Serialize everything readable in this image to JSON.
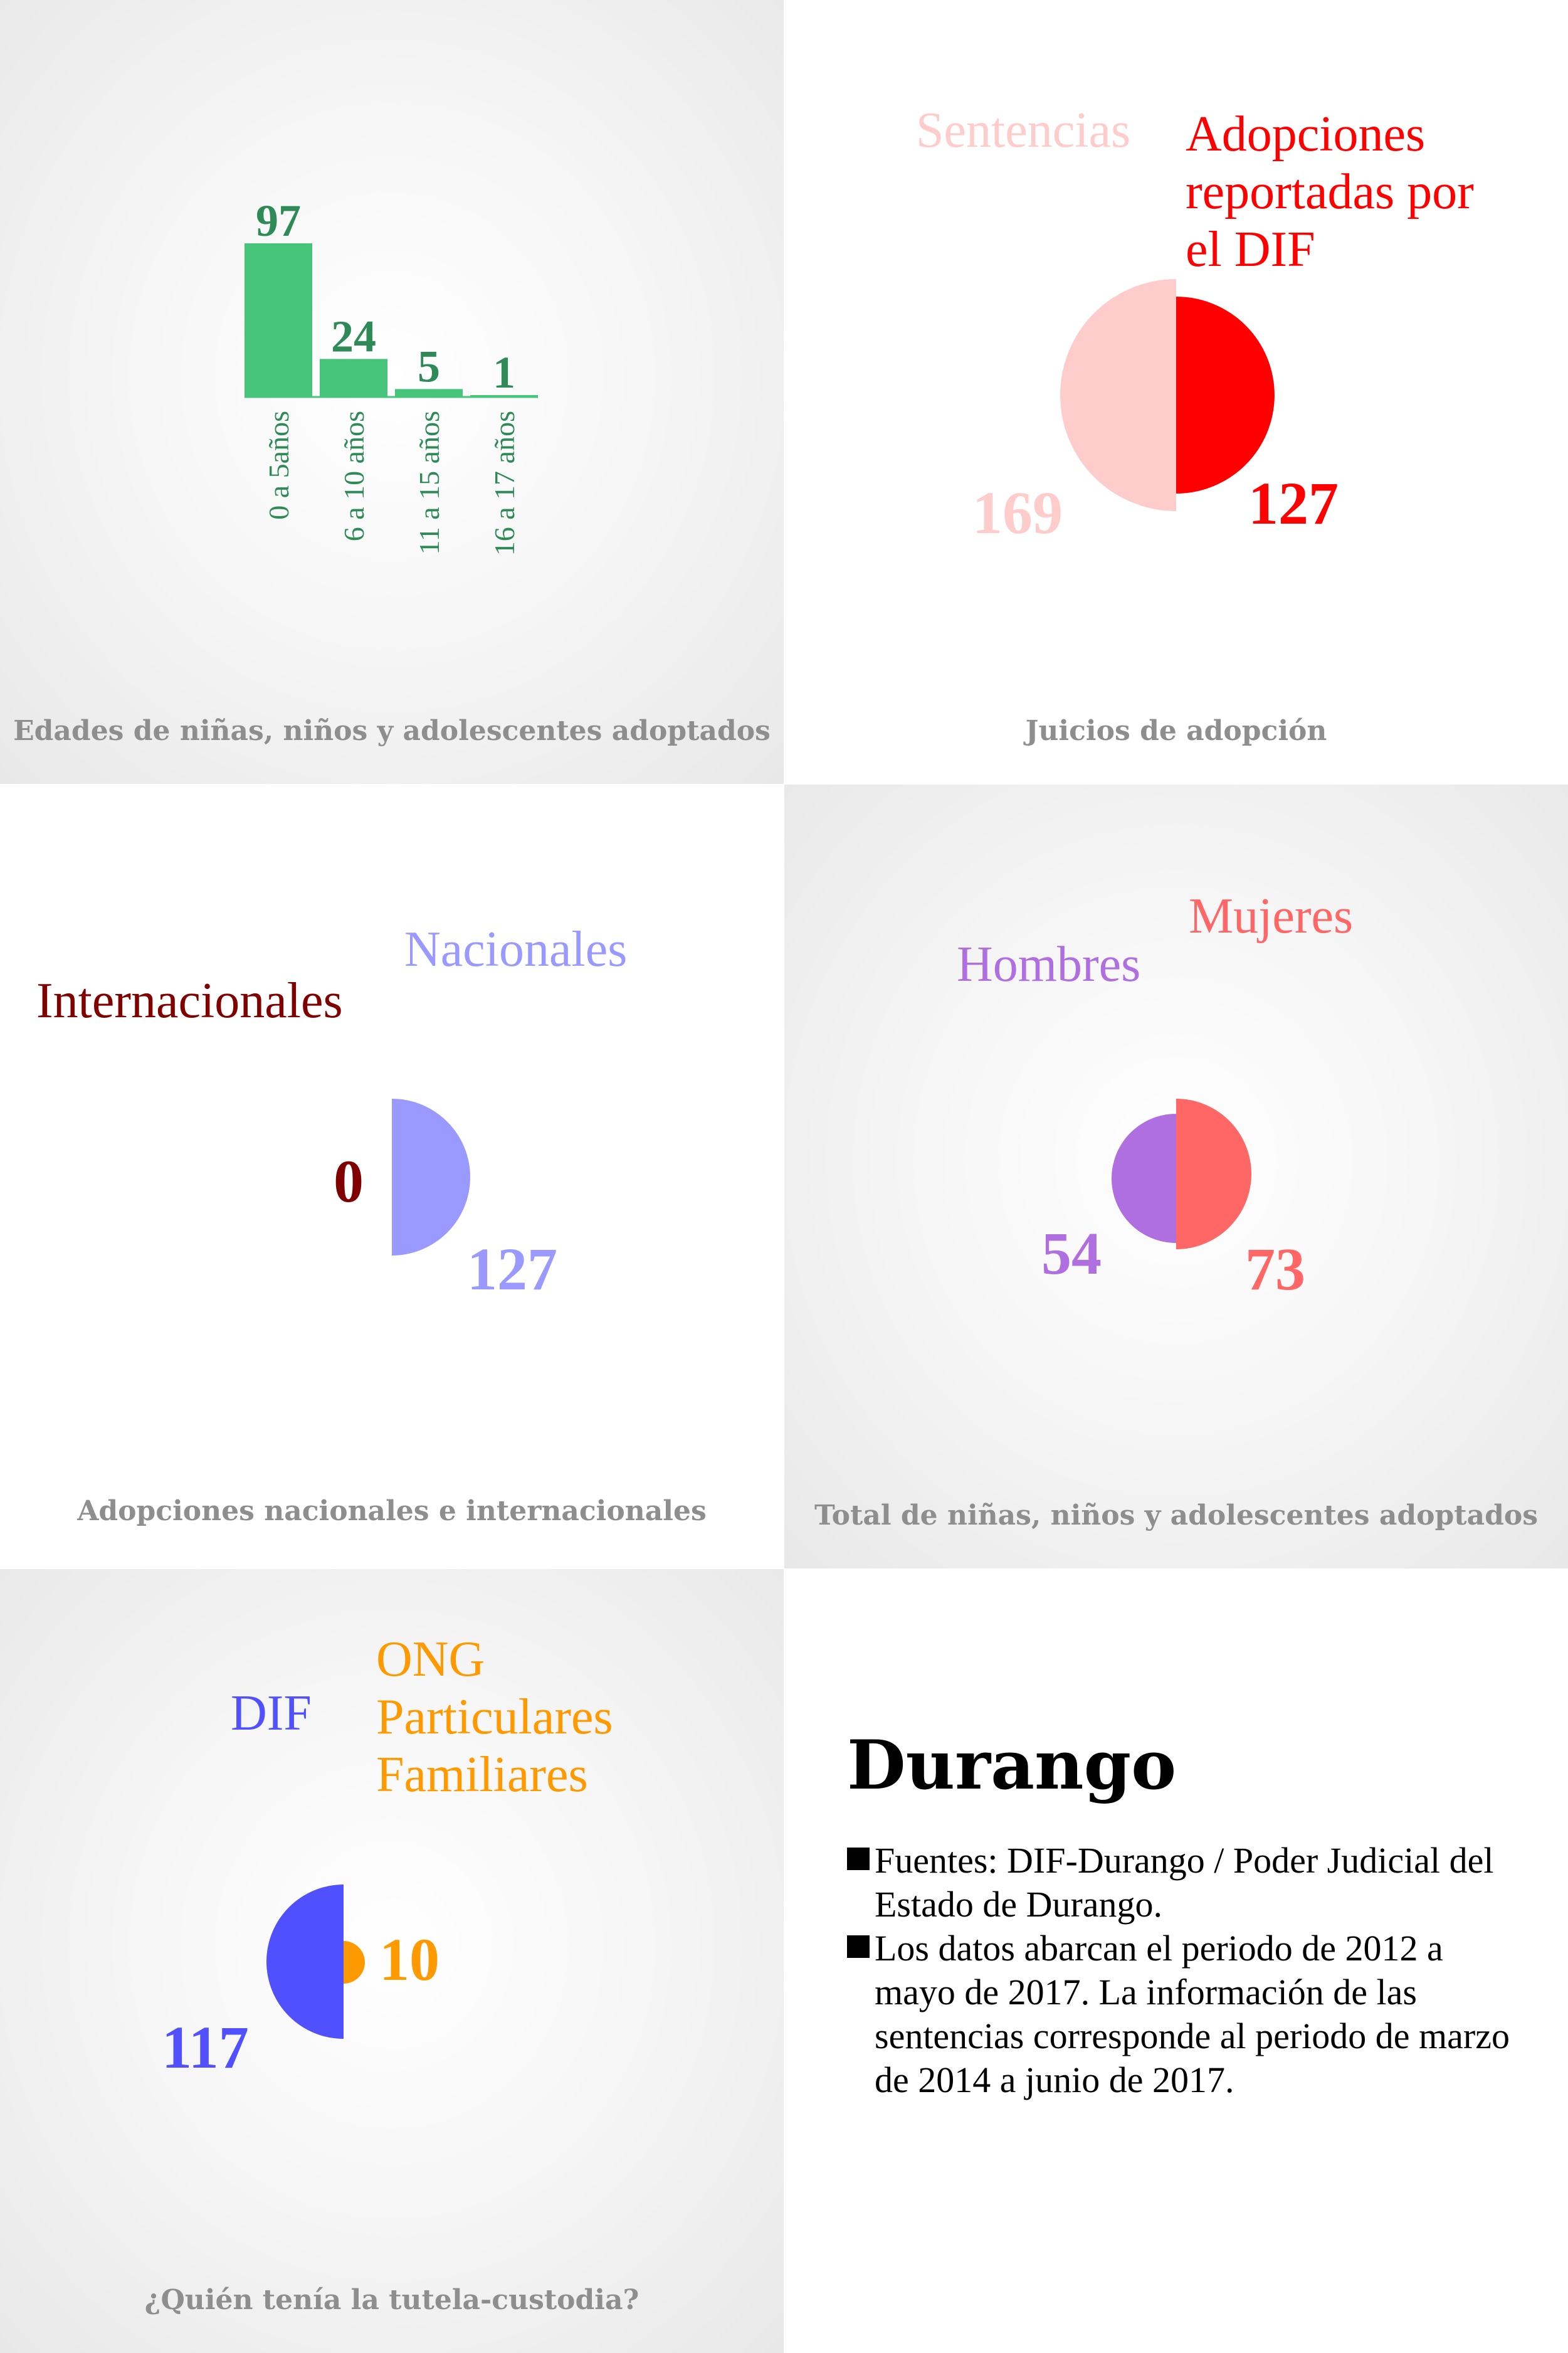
{
  "state": "Durango",
  "notes": [
    "Fuentes: DIF-Durango / Poder Judicial del Estado de Durango.",
    "Los datos abarcan el periodo de 2012 a mayo de 2017. La información de las sentencias corresponde al periodo de marzo de 2014 a junio de 2017."
  ],
  "colors": {
    "ages": "#46c47a",
    "ages_text": "#2e8b57",
    "sentencias": "#ffcccc",
    "adopciones": "#ff0000",
    "nacionales": "#9999ff",
    "internacionales": "#800000",
    "hombres": "#b06fe0",
    "mujeres": "#ff6666",
    "dif": "#5050ff",
    "ong": "#ff9900"
  },
  "chart_data": [
    {
      "type": "bar",
      "title": "Edades de niñas, niños y adolescentes adoptados",
      "categories": [
        "0 a 5años",
        "6 a 10 años",
        "11 a 15 años",
        "16 a 17 años"
      ],
      "values": [
        97,
        24,
        5,
        1
      ]
    },
    {
      "type": "pie",
      "title": "Juicios de adopción",
      "slices": [
        {
          "label": "Sentencias",
          "value": 169
        },
        {
          "label": "Adopciones reportadas por el DIF",
          "value": 127
        }
      ]
    },
    {
      "type": "pie",
      "title": "Adopciones nacionales e internacionales",
      "slices": [
        {
          "label": "Internacionales",
          "value": 0
        },
        {
          "label": "Nacionales",
          "value": 127
        }
      ]
    },
    {
      "type": "pie",
      "title": "Total de niñas, niños y adolescentes adoptados",
      "slices": [
        {
          "label": "Hombres",
          "value": 54
        },
        {
          "label": "Mujeres",
          "value": 73
        }
      ]
    },
    {
      "type": "pie",
      "title": "¿Quién tenía la tutela-custodia?",
      "slices": [
        {
          "label": "DIF",
          "value": 117
        },
        {
          "label": "ONG Particulares Familiares",
          "value": 10
        }
      ]
    }
  ]
}
